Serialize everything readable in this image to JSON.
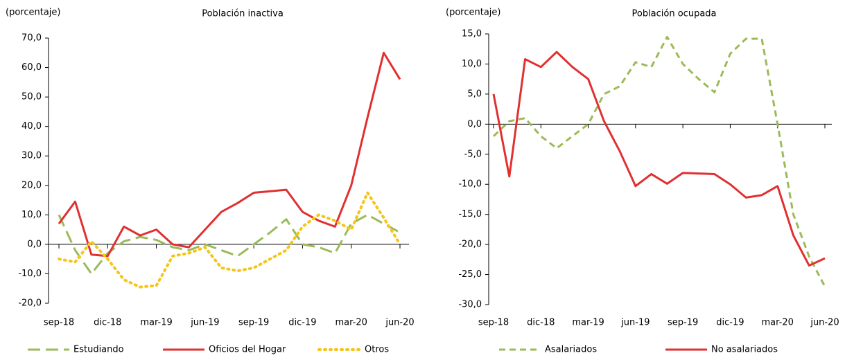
{
  "chart_data": [
    {
      "type": "line",
      "title": "Población inactiva",
      "y_label": "(porcentaje)",
      "categories": [
        "sep-18",
        null,
        null,
        "dic-18",
        null,
        null,
        "mar-19",
        null,
        null,
        "jun-19",
        null,
        null,
        "sep-19",
        null,
        null,
        "dic-19",
        null,
        null,
        "mar-20",
        null,
        null,
        "jun-20"
      ],
      "ylim": [
        -20,
        70
      ],
      "yticks": [
        {
          "value": -20,
          "label": "-20,0"
        },
        {
          "value": -10,
          "label": "-10,0"
        },
        {
          "value": 0,
          "label": "0,0"
        },
        {
          "value": 10,
          "label": "10,0"
        },
        {
          "value": 20,
          "label": "20,0"
        },
        {
          "value": 30,
          "label": "30,0"
        },
        {
          "value": 40,
          "label": "40,0"
        },
        {
          "value": 50,
          "label": "50,0"
        },
        {
          "value": 60,
          "label": "60,0"
        },
        {
          "value": 70,
          "label": "70,0"
        }
      ],
      "series": [
        {
          "name": "Estudiando",
          "color": "#9bbb59",
          "dash": "long",
          "values": [
            10,
            -2,
            -10,
            -3,
            1,
            2.5,
            1.5,
            -1,
            -2,
            0,
            -2,
            -4,
            0,
            4,
            8.5,
            0,
            -1,
            -3,
            7,
            10,
            7,
            4
          ]
        },
        {
          "name": "Oficios del Hogar",
          "color": "#e03030",
          "dash": "solid",
          "values": [
            7,
            14.5,
            -3.5,
            -4,
            6,
            3,
            5,
            0,
            -1,
            5,
            11,
            14,
            17.5,
            18,
            18.5,
            11,
            8,
            6,
            20,
            43,
            65,
            56
          ]
        },
        {
          "name": "Otros",
          "color": "#f5c518",
          "dash": "dot",
          "values": [
            -5,
            -6,
            1,
            -5,
            -12,
            -14.5,
            -14,
            -4,
            -3,
            -1,
            -8,
            -9,
            -8,
            -5,
            -2,
            6,
            10,
            8,
            5,
            17.5,
            9,
            0
          ]
        }
      ]
    },
    {
      "type": "line",
      "title": "Población ocupada",
      "y_label": "(porcentaje)",
      "categories": [
        "sep-18",
        null,
        null,
        "dic-18",
        null,
        null,
        "mar-19",
        null,
        null,
        "jun-19",
        null,
        null,
        "sep-19",
        null,
        null,
        "dic-19",
        null,
        null,
        "mar-20",
        null,
        null,
        "jun-20"
      ],
      "ylim": [
        -30,
        15
      ],
      "yticks": [
        {
          "value": -30,
          "label": "-30,0"
        },
        {
          "value": -25,
          "label": "-25,0"
        },
        {
          "value": -20,
          "label": "-20,0"
        },
        {
          "value": -15,
          "label": "-15,0"
        },
        {
          "value": -10,
          "label": "-10,0"
        },
        {
          "value": -5,
          "label": "-5,0"
        },
        {
          "value": 0,
          "label": "0,0"
        },
        {
          "value": 5,
          "label": "5,0"
        },
        {
          "value": 10,
          "label": "10,0"
        },
        {
          "value": 15,
          "label": "15,0"
        }
      ],
      "series": [
        {
          "name": "Asalariados",
          "color": "#9bbb59",
          "dash": "short",
          "values": [
            -2,
            0.5,
            1,
            -2,
            -4,
            -2,
            0,
            5,
            6.3,
            10.3,
            9.5,
            14.5,
            10,
            7.5,
            5.3,
            11.7,
            14.2,
            14.2,
            0,
            -15,
            -22,
            -27
          ]
        },
        {
          "name": "No asalariados",
          "color": "#e03030",
          "dash": "solid",
          "values": [
            5,
            -8.7,
            10.8,
            9.5,
            12,
            9.5,
            7.5,
            0.5,
            -4.5,
            -10.3,
            -8.3,
            -9.9,
            -8.1,
            -8.2,
            -8.3,
            -10,
            -12.2,
            -11.8,
            -10.3,
            -18.5,
            -23.5,
            -22.3
          ]
        }
      ]
    }
  ]
}
